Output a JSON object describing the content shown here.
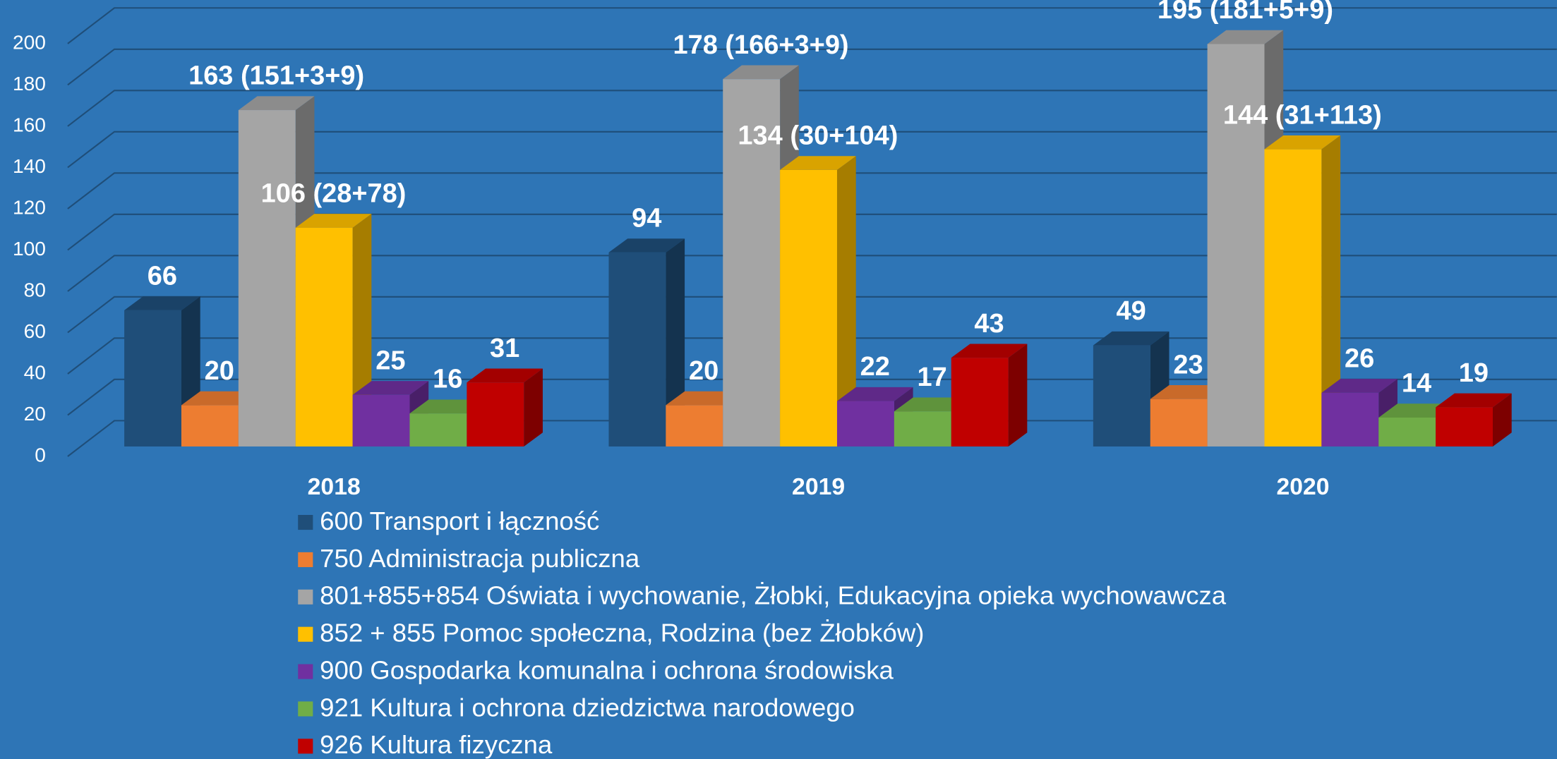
{
  "chart_data": {
    "type": "bar3d",
    "categories": [
      "2018",
      "2019",
      "2020"
    ],
    "series": [
      {
        "name": "600 Transport i łączność",
        "color": "#1f4e79",
        "values": [
          66,
          94,
          49
        ]
      },
      {
        "name": "750 Administracja publiczna",
        "color": "#ed7d31",
        "values": [
          20,
          20,
          23
        ]
      },
      {
        "name": "801+855+854 Oświata i wychowanie, Żłobki, Edukacyjna opieka wychowawcza",
        "color": "#a5a5a5",
        "values": [
          163,
          178,
          195
        ],
        "value_labels": [
          "163 (151+3+9)",
          "178 (166+3+9)",
          "195 (181+5+9)"
        ]
      },
      {
        "name": "852 + 855 Pomoc społeczna, Rodzina (bez Żłobków)",
        "color": "#ffc000",
        "values": [
          106,
          134,
          144
        ],
        "value_labels": [
          "106 (28+78)",
          "134 (30+104)",
          "144 (31+113)"
        ]
      },
      {
        "name": "900 Gospodarka komunalna i ochrona środowiska",
        "color": "#7030a0",
        "values": [
          25,
          22,
          26
        ]
      },
      {
        "name": "921 Kultura i ochrona dziedzictwa narodowego",
        "color": "#70ad47",
        "values": [
          16,
          17,
          14
        ]
      },
      {
        "name": "926 Kultura fizyczna",
        "color": "#c00000",
        "values": [
          31,
          43,
          19
        ]
      }
    ],
    "ylim": [
      0,
      200
    ],
    "yticks": [
      0,
      20,
      40,
      60,
      80,
      100,
      120,
      140,
      160,
      180,
      200
    ],
    "grid": true,
    "legend": "bottom"
  }
}
